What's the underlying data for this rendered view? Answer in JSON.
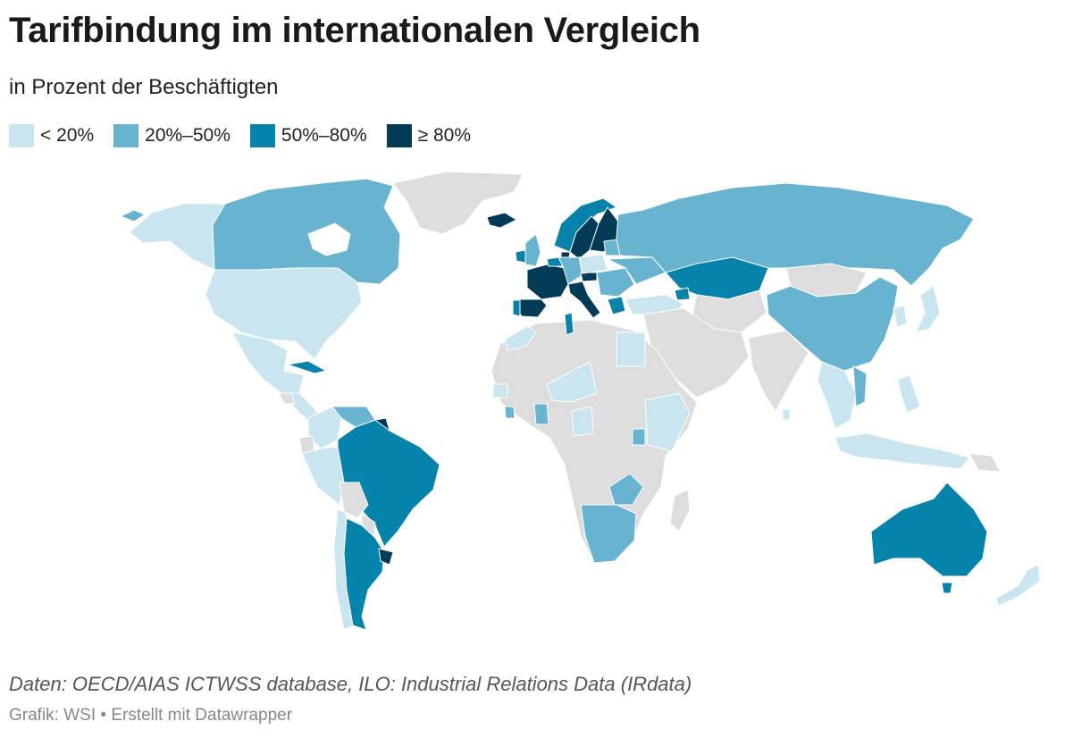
{
  "header": {
    "title": "Tarifbindung im internationalen Vergleich",
    "subtitle": "in Prozent der Beschäftigten"
  },
  "legend": [
    {
      "label": "< 20%",
      "color": "#c9e5ef"
    },
    {
      "label": "20%–50%",
      "color": "#67b3d0"
    },
    {
      "label": "50%–80%",
      "color": "#0583aa"
    },
    {
      "label": "≥ 80%",
      "color": "#033a55"
    }
  ],
  "no_data_color": "#dddddd",
  "footer": {
    "source": "Daten: OECD/AIAS ICTWSS database, ILO: Industrial Relations Data (IRdata)",
    "credit": "Grafik: WSI • Erstellt mit Datawrapper"
  }
}
